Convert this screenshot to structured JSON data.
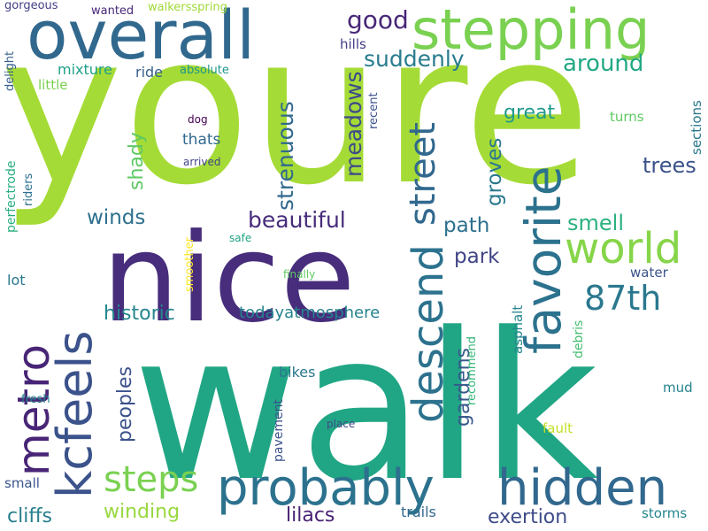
{
  "words": [
    {
      "id": "youre",
      "text": "youre",
      "color": "#a5db36"
    },
    {
      "id": "walk",
      "text": "walk",
      "color": "#21a685"
    },
    {
      "id": "nice",
      "text": "nice",
      "color": "#472d7b"
    },
    {
      "id": "overall",
      "text": "overall",
      "color": "#31688e"
    },
    {
      "id": "stepping",
      "text": "stepping",
      "color": "#7ad151"
    },
    {
      "id": "probably",
      "text": "probably",
      "color": "#2c728e"
    },
    {
      "id": "hidden",
      "text": "hidden",
      "color": "#31688e"
    },
    {
      "id": "favorite",
      "text": "favorite",
      "color": "#2c728e"
    },
    {
      "id": "kcfeels",
      "text": "kcfeels",
      "color": "#3b528b"
    },
    {
      "id": "metro",
      "text": "metro",
      "color": "#482576"
    },
    {
      "id": "descend",
      "text": "descend",
      "color": "#2c728e"
    },
    {
      "id": "world",
      "text": "world",
      "color": "#86d549"
    },
    {
      "id": "street",
      "text": "street",
      "color": "#31688e"
    },
    {
      "id": "steps",
      "text": "steps",
      "color": "#7ad151"
    },
    {
      "id": "87th",
      "text": "87th",
      "color": "#2a788e"
    },
    {
      "id": "good",
      "text": "good",
      "color": "#482878"
    },
    {
      "id": "suddenly",
      "text": "suddenly",
      "color": "#287c8e"
    },
    {
      "id": "around",
      "text": "around",
      "color": "#22a884"
    },
    {
      "id": "meadows",
      "text": "meadows",
      "color": "#3e4a89"
    },
    {
      "id": "strenuous",
      "text": "strenuous",
      "color": "#31688e"
    },
    {
      "id": "trees",
      "text": "trees",
      "color": "#3b528b"
    },
    {
      "id": "groves",
      "text": "groves",
      "color": "#2a788e"
    },
    {
      "id": "beautiful",
      "text": "beautiful",
      "color": "#472c7a"
    },
    {
      "id": "winds",
      "text": "winds",
      "color": "#2d708e"
    },
    {
      "id": "path",
      "text": "path",
      "color": "#2d708e"
    },
    {
      "id": "smell",
      "text": "smell",
      "color": "#2cb17e"
    },
    {
      "id": "park",
      "text": "park",
      "color": "#414487"
    },
    {
      "id": "great",
      "text": "great",
      "color": "#1f9a8a"
    },
    {
      "id": "shady",
      "text": "shady",
      "color": "#5ec962"
    },
    {
      "id": "historic",
      "text": "historic",
      "color": "#24868e"
    },
    {
      "id": "gardens",
      "text": "gardens",
      "color": "#38598c"
    },
    {
      "id": "peoples",
      "text": "peoples",
      "color": "#3b528b"
    },
    {
      "id": "winding",
      "text": "winding",
      "color": "#98d83e"
    },
    {
      "id": "lilacs",
      "text": "lilacs",
      "color": "#482173"
    },
    {
      "id": "cliffs",
      "text": "cliffs",
      "color": "#277f8e"
    },
    {
      "id": "exertion",
      "text": "exertion",
      "color": "#3e4c8a"
    },
    {
      "id": "todayatmosphere",
      "text": "todayatmosphere",
      "color": "#25848e"
    },
    {
      "id": "thats",
      "text": "thats",
      "color": "#31688e"
    },
    {
      "id": "mixture",
      "text": "mixture",
      "color": "#1fa088"
    },
    {
      "id": "ride",
      "text": "ride",
      "color": "#355f8d"
    },
    {
      "id": "little",
      "text": "little",
      "color": "#7ad151"
    },
    {
      "id": "hills",
      "text": "hills",
      "color": "#433e85"
    },
    {
      "id": "absolute",
      "text": "absolute",
      "color": "#1f968b"
    },
    {
      "id": "gorgeous",
      "text": "gorgeous",
      "color": "#424086"
    },
    {
      "id": "wanted",
      "text": "wanted",
      "color": "#482878"
    },
    {
      "id": "walkersspring",
      "text": "walkersspring",
      "color": "#a0da39"
    },
    {
      "id": "delight",
      "text": "delight",
      "color": "#355f8d"
    },
    {
      "id": "perfectrode",
      "text": "perfectrode",
      "color": "#29af7f"
    },
    {
      "id": "riders",
      "text": "riders",
      "color": "#2d708e"
    },
    {
      "id": "lot",
      "text": "lot",
      "color": "#2a788e"
    },
    {
      "id": "recent",
      "text": "recent",
      "color": "#3b528b"
    },
    {
      "id": "dog",
      "text": "dog",
      "color": "#440154"
    },
    {
      "id": "arrived",
      "text": "arrived",
      "color": "#414487"
    },
    {
      "id": "turns",
      "text": "turns",
      "color": "#5ec962"
    },
    {
      "id": "sections",
      "text": "sections",
      "color": "#2a788e"
    },
    {
      "id": "safe",
      "text": "safe",
      "color": "#20a486"
    },
    {
      "id": "finally",
      "text": "finally",
      "color": "#5ec962"
    },
    {
      "id": "smoother",
      "text": "smoother",
      "color": "#fde725"
    },
    {
      "id": "water",
      "text": "water",
      "color": "#3b528b"
    },
    {
      "id": "asphalt",
      "text": "asphalt",
      "color": "#24868e"
    },
    {
      "id": "recommend",
      "text": "recommend",
      "color": "#35b779"
    },
    {
      "id": "debris",
      "text": "debris",
      "color": "#44bf70"
    },
    {
      "id": "bikes",
      "text": "bikes",
      "color": "#2a788e"
    },
    {
      "id": "mud",
      "text": "mud",
      "color": "#25848e"
    },
    {
      "id": "pavement",
      "text": "pavement",
      "color": "#3b528b"
    },
    {
      "id": "fresh",
      "text": "fresh",
      "color": "#25848e"
    },
    {
      "id": "place",
      "text": "place",
      "color": "#3e4989"
    },
    {
      "id": "fault",
      "text": "fault",
      "color": "#c2df23"
    },
    {
      "id": "small",
      "text": "small",
      "color": "#39558c"
    },
    {
      "id": "trails",
      "text": "trails",
      "color": "#31688e"
    },
    {
      "id": "storms",
      "text": "storms",
      "color": "#24868e"
    }
  ]
}
